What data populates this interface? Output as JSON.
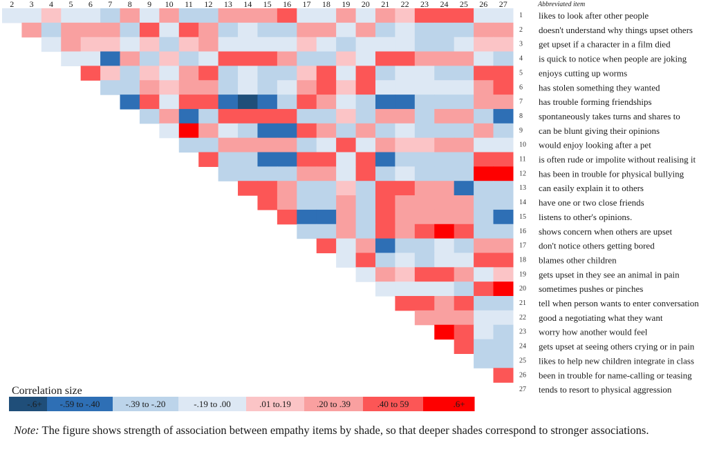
{
  "chart_data": {
    "type": "heatmap",
    "title": "",
    "x_labels": [
      "2",
      "3",
      "4",
      "5",
      "6",
      "7",
      "8",
      "9",
      "10",
      "11",
      "12",
      "13",
      "14",
      "15",
      "16",
      "17",
      "18",
      "19",
      "20",
      "21",
      "22",
      "23",
      "24",
      "25",
      "26",
      "27"
    ],
    "y_header": "Abbreviated item",
    "items": [
      {
        "num": "1",
        "label": "likes to look after other people"
      },
      {
        "num": "2",
        "label": "doesn't understand why things upset others"
      },
      {
        "num": "3",
        "label": "get upset if a character in a film died"
      },
      {
        "num": "4",
        "label": "is quick to notice when people are joking"
      },
      {
        "num": "5",
        "label": "enjoys cutting up worms"
      },
      {
        "num": "6",
        "label": "has stolen something they wanted"
      },
      {
        "num": "7",
        "label": "has trouble forming friendships"
      },
      {
        "num": "8",
        "label": "spontaneously takes turns and shares to"
      },
      {
        "num": "9",
        "label": "can be blunt giving their opinions"
      },
      {
        "num": "10",
        "label": "would enjoy looking after a pet"
      },
      {
        "num": "11",
        "label": "is often rude or impolite without realising it"
      },
      {
        "num": "12",
        "label": "has been in trouble for physical bullying"
      },
      {
        "num": "13",
        "label": "can easily explain it to others"
      },
      {
        "num": "14",
        "label": "have one or two close friends"
      },
      {
        "num": "15",
        "label": "listens to other's opinions."
      },
      {
        "num": "16",
        "label": "shows concern when others are upset"
      },
      {
        "num": "17",
        "label": "don't notice others getting bored"
      },
      {
        "num": "18",
        "label": "blames other children"
      },
      {
        "num": "19",
        "label": "gets upset in they see an animal in pain"
      },
      {
        "num": "20",
        "label": "sometimes pushes or pinches"
      },
      {
        "num": "21",
        "label": "tell when person wants to enter conversation"
      },
      {
        "num": "22",
        "label": "good a negotiating what they want"
      },
      {
        "num": "23",
        "label": "worry how another would feel"
      },
      {
        "num": "24",
        "label": "gets upset at seeing others crying or in pain"
      },
      {
        "num": "25",
        "label": "likes to help new children integrate in class"
      },
      {
        "num": "26",
        "label": "been in trouble for name-calling or teasing"
      },
      {
        "num": "27",
        "label": "tends to resort to physical aggression"
      }
    ],
    "legend_title": "Correlation size",
    "legend": [
      {
        "key": "b4",
        "label": "-.6+",
        "color": "#1f4e79",
        "text_color": "#1a1a1a"
      },
      {
        "key": "b3",
        "label": "-.59 to -.40",
        "color": "#2e6fb5",
        "text_color": "#1a1a1a"
      },
      {
        "key": "b2",
        "label": "-.39 to -.20",
        "color": "#bcd4ea",
        "text_color": "#1a1a1a"
      },
      {
        "key": "b1",
        "label": "-.19 to .00",
        "color": "#dde8f4",
        "text_color": "#1a1a1a"
      },
      {
        "key": "r1",
        "label": ".01 to.19",
        "color": "#fbc4c6",
        "text_color": "#1a1a1a"
      },
      {
        "key": "r2",
        "label": ".20 to .39",
        "color": "#f9a0a0",
        "text_color": "#1a1a1a"
      },
      {
        "key": "r3",
        "label": ".40 to 59",
        "color": "#fc5656",
        "text_color": "#1a1a1a"
      },
      {
        "key": "r4",
        "label": ".6+",
        "color": "#fe0000",
        "text_color": "#1a1a1a"
      }
    ],
    "rows": [
      {
        "row": "1",
        "start_col": "2",
        "cells": [
          "b1",
          "b1",
          "r1",
          "b1",
          "b1",
          "b2",
          "r2",
          "b1",
          "r2",
          "b2",
          "b2",
          "r2",
          "r2",
          "r2",
          "r3",
          "b1",
          "b1",
          "r2",
          "b1",
          "r2",
          "r1",
          "r3",
          "r3",
          "r3",
          "b1",
          "b1"
        ]
      },
      {
        "row": "2",
        "start_col": "3",
        "cells": [
          "r2",
          "b2",
          "r2",
          "r2",
          "r2",
          "b2",
          "r3",
          "b1",
          "r3",
          "r2",
          "b2",
          "b1",
          "b2",
          "b2",
          "r2",
          "r2",
          "b1",
          "r2",
          "b2",
          "b1",
          "b2",
          "b2",
          "b2",
          "r2",
          "r2"
        ]
      },
      {
        "row": "3",
        "start_col": "4",
        "cells": [
          "b1",
          "r2",
          "r1",
          "r1",
          "b1",
          "r1",
          "b2",
          "r1",
          "r2",
          "b1",
          "b1",
          "b1",
          "b1",
          "r1",
          "b1",
          "b2",
          "b1",
          "b1",
          "b1",
          "b2",
          "b2",
          "b1",
          "r1",
          "r1"
        ]
      },
      {
        "row": "4",
        "start_col": "5",
        "cells": [
          "b1",
          "b1",
          "b3",
          "r2",
          "b2",
          "r1",
          "b2",
          "b1",
          "r3",
          "r3",
          "r3",
          "r2",
          "b2",
          "b2",
          "r1",
          "b1",
          "r3",
          "r3",
          "r2",
          "r2",
          "r2",
          "b1",
          "b2"
        ]
      },
      {
        "row": "5",
        "start_col": "6",
        "cells": [
          "r3",
          "r1",
          "b2",
          "r1",
          "b1",
          "r2",
          "r3",
          "b2",
          "b1",
          "b2",
          "b2",
          "r1",
          "r3",
          "b1",
          "r3",
          "b2",
          "b1",
          "b1",
          "b2",
          "b2",
          "r3",
          "r3"
        ]
      },
      {
        "row": "6",
        "start_col": "7",
        "cells": [
          "b2",
          "b2",
          "r2",
          "r1",
          "r2",
          "r2",
          "b2",
          "b1",
          "b2",
          "b1",
          "r2",
          "r3",
          "r1",
          "r3",
          "b1",
          "b1",
          "b1",
          "b1",
          "b1",
          "r2",
          "r3"
        ]
      },
      {
        "row": "7",
        "start_col": "8",
        "cells": [
          "b3",
          "r3",
          "b1",
          "r3",
          "r3",
          "b3",
          "b4",
          "b3",
          "b2",
          "r3",
          "r2",
          "b1",
          "b2",
          "b3",
          "b3",
          "b2",
          "b2",
          "b2",
          "r2",
          "r2"
        ]
      },
      {
        "row": "8",
        "start_col": "9",
        "cells": [
          "b2",
          "r2",
          "b3",
          "b2",
          "r3",
          "r3",
          "r3",
          "r3",
          "b2",
          "b2",
          "r1",
          "b2",
          "r2",
          "r2",
          "b2",
          "r2",
          "r2",
          "b2",
          "b3"
        ]
      },
      {
        "row": "9",
        "start_col": "10",
        "cells": [
          "b1",
          "r4",
          "r2",
          "b1",
          "b2",
          "b3",
          "b3",
          "r3",
          "r2",
          "b2",
          "r2",
          "b2",
          "b1",
          "b2",
          "b2",
          "b2",
          "r2",
          "b2"
        ]
      },
      {
        "row": "10",
        "start_col": "11",
        "cells": [
          "b2",
          "b2",
          "r2",
          "r2",
          "r2",
          "r2",
          "b2",
          "b1",
          "r3",
          "b1",
          "r2",
          "r1",
          "r1",
          "r2",
          "r2",
          "b1",
          "b1"
        ]
      },
      {
        "row": "11",
        "start_col": "12",
        "cells": [
          "r3",
          "b2",
          "b2",
          "b3",
          "b3",
          "r3",
          "r3",
          "b1",
          "r3",
          "b3",
          "b2",
          "b2",
          "b2",
          "b2",
          "r3",
          "r3"
        ]
      },
      {
        "row": "12",
        "start_col": "13",
        "cells": [
          "b2",
          "b2",
          "b2",
          "b2",
          "r2",
          "r2",
          "b1",
          "r3",
          "b2",
          "b1",
          "b2",
          "b2",
          "b2",
          "r4",
          "r4"
        ]
      },
      {
        "row": "13",
        "start_col": "14",
        "cells": [
          "r3",
          "r3",
          "r2",
          "b2",
          "b2",
          "r1",
          "b2",
          "r3",
          "r3",
          "r2",
          "r2",
          "b3",
          "b2",
          "b2"
        ]
      },
      {
        "row": "14",
        "start_col": "15",
        "cells": [
          "r3",
          "r2",
          "b2",
          "b2",
          "r2",
          "b2",
          "r3",
          "r2",
          "r2",
          "r2",
          "r2",
          "b2",
          "b2"
        ]
      },
      {
        "row": "15",
        "start_col": "16",
        "cells": [
          "r3",
          "b3",
          "b3",
          "r2",
          "b2",
          "r3",
          "r2",
          "r2",
          "r2",
          "r2",
          "b2",
          "b3"
        ]
      },
      {
        "row": "16",
        "start_col": "17",
        "cells": [
          "b2",
          "b2",
          "r2",
          "b2",
          "r3",
          "r2",
          "r3",
          "r4",
          "r3",
          "b2",
          "b2"
        ]
      },
      {
        "row": "17",
        "start_col": "18",
        "cells": [
          "r3",
          "b1",
          "r2",
          "b3",
          "b2",
          "b2",
          "b1",
          "b2",
          "r2",
          "r2"
        ]
      },
      {
        "row": "18",
        "start_col": "19",
        "cells": [
          "b1",
          "r3",
          "b2",
          "b1",
          "b2",
          "b1",
          "b1",
          "r3",
          "r3"
        ]
      },
      {
        "row": "19",
        "start_col": "20",
        "cells": [
          "b1",
          "r2",
          "r1",
          "r3",
          "r3",
          "r2",
          "b1",
          "r1"
        ]
      },
      {
        "row": "20",
        "start_col": "21",
        "cells": [
          "b1",
          "b1",
          "b1",
          "b1",
          "b2",
          "r3",
          "r4"
        ]
      },
      {
        "row": "21",
        "start_col": "22",
        "cells": [
          "r3",
          "r3",
          "r2",
          "r3",
          "b2",
          "b2"
        ]
      },
      {
        "row": "22",
        "start_col": "23",
        "cells": [
          "r2",
          "r2",
          "r2",
          "b1",
          "b1"
        ]
      },
      {
        "row": "23",
        "start_col": "24",
        "cells": [
          "r4",
          "r3",
          "b1",
          "b2"
        ]
      },
      {
        "row": "24",
        "start_col": "25",
        "cells": [
          "r3",
          "b2",
          "b2"
        ]
      },
      {
        "row": "25",
        "start_col": "26",
        "cells": [
          "b2",
          "b2"
        ]
      },
      {
        "row": "26",
        "start_col": "27",
        "cells": [
          "r3"
        ]
      }
    ]
  },
  "note": {
    "prefix": "Note:",
    "text": " The figure shows strength of association between empathy items by shade, so that deeper shades correspond to stronger associations."
  }
}
